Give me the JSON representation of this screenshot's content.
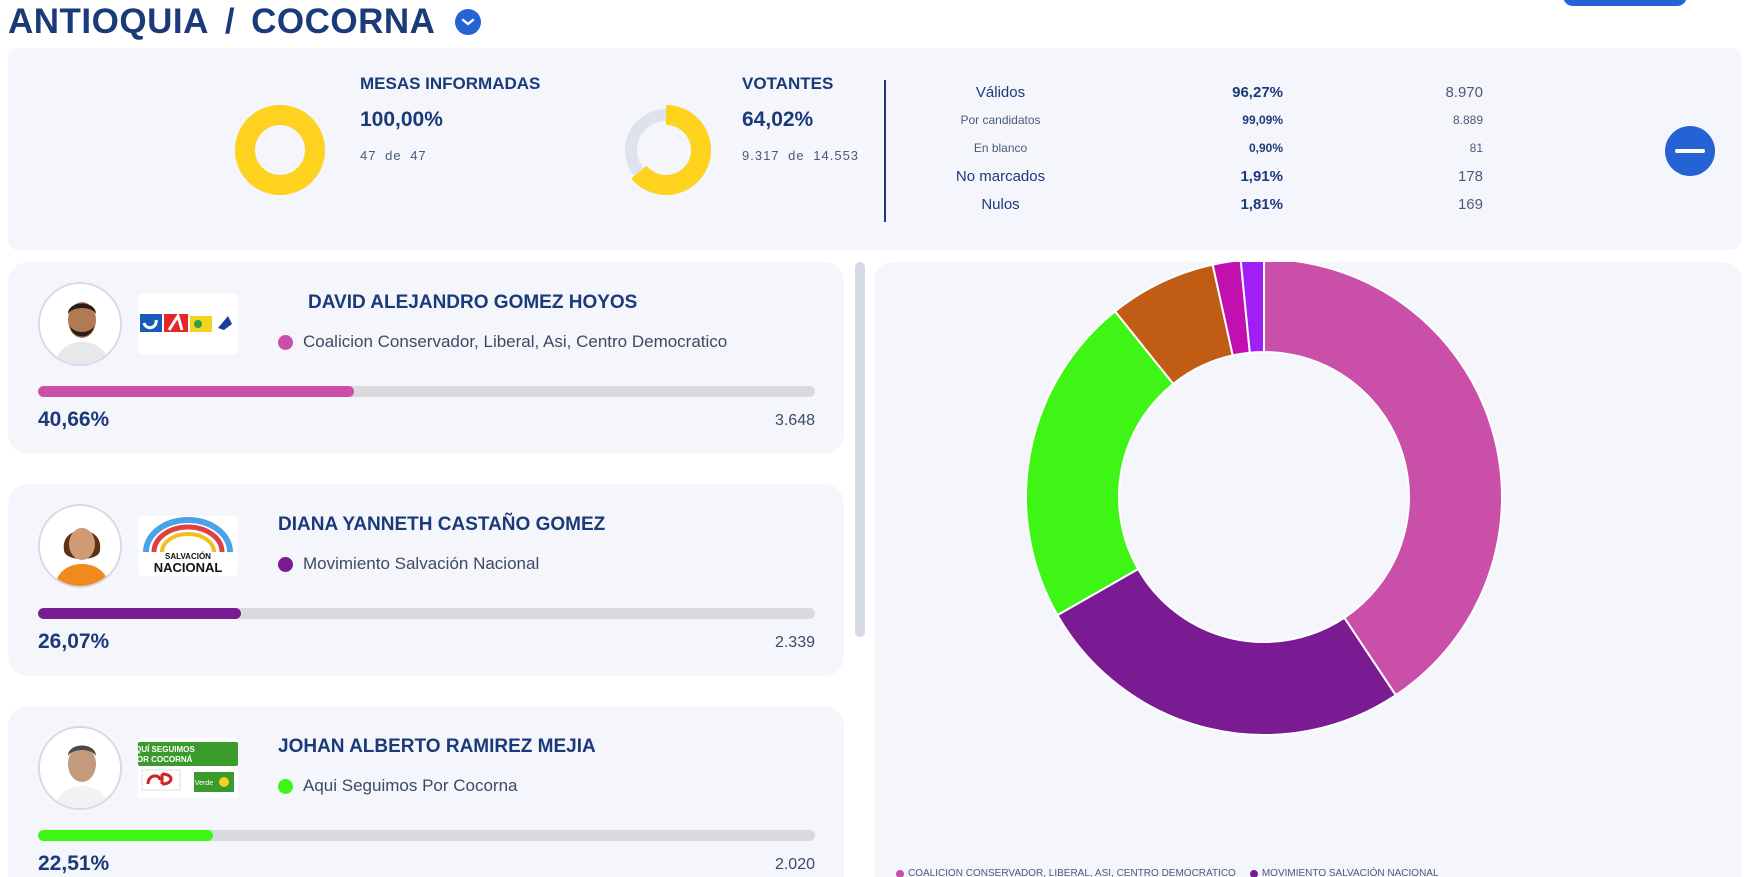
{
  "header": {
    "department": "ANTIOQUIA",
    "separator": "/",
    "municipality": "COCORNA"
  },
  "summary": {
    "mesas": {
      "label": "MESAS INFORMADAS",
      "percent": "100,00%",
      "reported": "47",
      "connector": "de",
      "total": "47",
      "fraction": 1.0
    },
    "votantes": {
      "label": "VOTANTES",
      "percent": "64,02%",
      "reported": "9.317",
      "connector": "de",
      "total": "14.553",
      "fraction": 0.6402
    },
    "rows": [
      {
        "label": "Válidos",
        "percent": "96,27%",
        "count": "8.970",
        "size": "normal"
      },
      {
        "label": "Por candidatos",
        "percent": "99,09%",
        "count": "8.889",
        "size": "small"
      },
      {
        "label": "En blanco",
        "percent": "0,90%",
        "count": "81",
        "size": "small"
      },
      {
        "label": "No marcados",
        "percent": "1,91%",
        "count": "178",
        "size": "normal"
      },
      {
        "label": "Nulos",
        "percent": "1,81%",
        "count": "169",
        "size": "normal"
      }
    ]
  },
  "candidates": [
    {
      "name": "DAVID ALEJANDRO GOMEZ HOYOS",
      "party": "Coalicion Conservador, Liberal, Asi, Centro Democratico",
      "percent": "40,66%",
      "votes": "3.648",
      "share": 0.4066,
      "color": "#c94fa8",
      "logo": "coalition-logo"
    },
    {
      "name": "DIANA YANNETH CASTAÑO GOMEZ",
      "party": "Movimiento Salvación Nacional",
      "percent": "26,07%",
      "votes": "2.339",
      "share": 0.2607,
      "color": "#7a1b94",
      "logo": "salvacion-nacional-logo",
      "logo_text": [
        "SALVACIÓN",
        "NACIONAL"
      ]
    },
    {
      "name": "JOHAN ALBERTO RAMIREZ MEJIA",
      "party": "Aqui Seguimos Por Cocorna",
      "percent": "22,51%",
      "votes": "2.020",
      "share": 0.2251,
      "color": "#3ef516",
      "logo": "aqui-seguimos-logo",
      "logo_text": [
        "AQUÍ SEGUIMOS",
        "POR COCORNÁ",
        "Verde"
      ]
    }
  ],
  "chart_data": {
    "type": "pie",
    "donut": true,
    "title": "",
    "series": [
      {
        "name": "COALICION CONSERVADOR, LIBERAL, ASI, CENTRO DEMOCRATICO",
        "value": 40.66,
        "color": "#c94fa8"
      },
      {
        "name": "MOVIMIENTO SALVACIÓN NACIONAL",
        "value": 26.07,
        "color": "#7a1b94"
      },
      {
        "value": 22.51,
        "color": "#3ef516"
      },
      {
        "value": 7.3,
        "color": "#c05c14"
      },
      {
        "value": 1.9,
        "color": "#c20fb0"
      },
      {
        "value": 1.56,
        "color": "#a11ff5"
      }
    ],
    "legend_position": "bottom-left"
  },
  "colors": {
    "primary": "#1b3a7a",
    "accent": "#2563d4",
    "gauge_fill": "#ffd21f",
    "gauge_track": "#dde3ee",
    "panel_bg": "#f4f6fb"
  }
}
